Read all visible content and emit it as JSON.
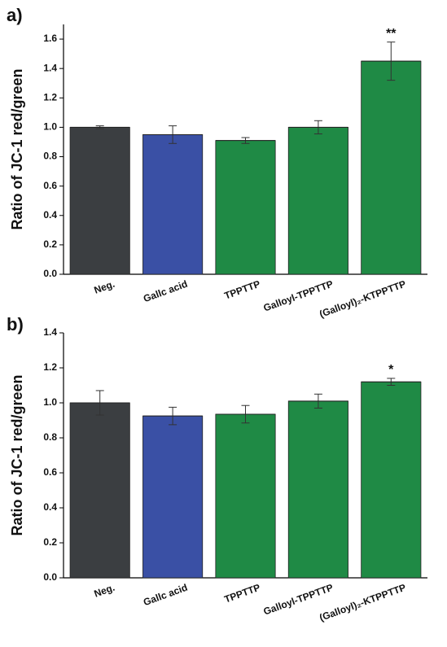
{
  "chart_data": [
    {
      "type": "bar",
      "panel_label": "a)",
      "y_label": "Ratio of JC-1 red/green",
      "categories": [
        "Neg.",
        "Gallc acid",
        "TPPTTP",
        "Galloyl-TPPTTP",
        "(Galloyl)₂-KTPPTTP"
      ],
      "values": [
        1.0,
        0.95,
        0.91,
        1.0,
        1.45
      ],
      "errors": [
        0.01,
        0.06,
        0.02,
        0.045,
        0.13
      ],
      "significance": [
        null,
        null,
        null,
        null,
        "**"
      ],
      "colors": [
        "#3b3e41",
        "#3a50a5",
        "#1f8a45",
        "#1f8a45",
        "#1f8a45"
      ],
      "ylim": [
        0,
        1.7
      ],
      "yticks": [
        {
          "value": 0,
          "label": "0.0"
        },
        {
          "value": 0.2,
          "label": "0.2"
        },
        {
          "value": 0.4,
          "label": "0.4"
        },
        {
          "value": 0.6,
          "label": "0.6"
        },
        {
          "value": 0.8,
          "label": "0.8"
        },
        {
          "value": 1.0,
          "label": "1.0"
        },
        {
          "value": 1.2,
          "label": "1.2"
        },
        {
          "value": 1.4,
          "label": "1.4"
        },
        {
          "value": 1.6,
          "label": "1.6"
        }
      ]
    },
    {
      "type": "bar",
      "panel_label": "b)",
      "y_label": "Ratio of JC-1 red/green",
      "categories": [
        "Neg.",
        "Gallc acid",
        "TPPTTP",
        "Galloyl-TPPTTP",
        "(Galloyl)₂-KTPPTTP"
      ],
      "values": [
        1.0,
        0.925,
        0.935,
        1.01,
        1.12
      ],
      "errors": [
        0.07,
        0.05,
        0.05,
        0.04,
        0.02
      ],
      "significance": [
        null,
        null,
        null,
        null,
        "*"
      ],
      "colors": [
        "#3b3e41",
        "#3a50a5",
        "#1f8a45",
        "#1f8a45",
        "#1f8a45"
      ],
      "ylim": [
        0,
        1.4
      ],
      "yticks": [
        {
          "value": 0,
          "label": "0.0"
        },
        {
          "value": 0.2,
          "label": "0.2"
        },
        {
          "value": 0.4,
          "label": "0.4"
        },
        {
          "value": 0.6,
          "label": "0.6"
        },
        {
          "value": 0.8,
          "label": "0.8"
        },
        {
          "value": 1.0,
          "label": "1.0"
        },
        {
          "value": 1.2,
          "label": "1.2"
        },
        {
          "value": 1.4,
          "label": "1.4"
        }
      ]
    }
  ]
}
